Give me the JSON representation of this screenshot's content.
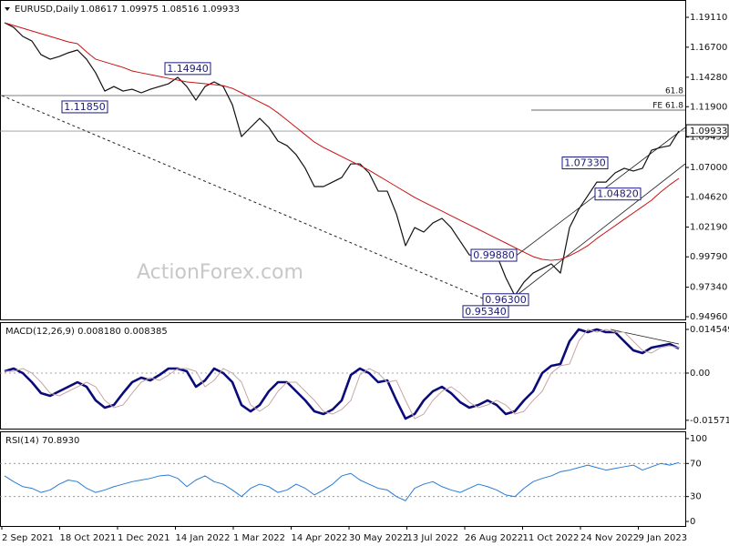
{
  "x_axis_labels": [
    "2 Sep 2021",
    "18 Oct 2021",
    "1 Dec 2021",
    "14 Jan 2022",
    "1 Mar 2022",
    "14 Apr 2022",
    "30 May 2022",
    "13 Jul 2022",
    "26 Aug 2022",
    "11 Oct 2022",
    "24 Nov 2022",
    "9 Jan 2023"
  ],
  "watermark": "ActionForex.com",
  "chart_data": [
    {
      "type": "line",
      "title": "EURUSD,Daily",
      "subtitle": "1.08617 1.09975 1.08516 1.09933",
      "ylim": [
        0.9467,
        1.2036
      ],
      "yticks": [
        {
          "value": 1.1911,
          "label": "1.19110"
        },
        {
          "value": 1.167,
          "label": "1.16700"
        },
        {
          "value": 1.1428,
          "label": "1.14280"
        },
        {
          "value": 1.119,
          "label": "1.11900"
        },
        {
          "value": 1.0945,
          "label": "1.09450"
        },
        {
          "value": 1.07,
          "label": "1.07000"
        },
        {
          "value": 1.0462,
          "label": "1.04620"
        },
        {
          "value": 1.0219,
          "label": "1.02190"
        },
        {
          "value": 0.9979,
          "label": "0.99790"
        },
        {
          "value": 0.9734,
          "label": "0.97340"
        },
        {
          "value": 0.9496,
          "label": "0.94960"
        }
      ],
      "grid": false,
      "series": [
        {
          "color": "#111111",
          "values": [
            1.1867,
            1.183,
            1.1757,
            1.172,
            1.161,
            1.1573,
            1.1595,
            1.1625,
            1.1647,
            1.1573,
            1.1463,
            1.1316,
            1.1353,
            1.1316,
            1.1331,
            1.1302,
            1.1331,
            1.1353,
            1.1375,
            1.1427,
            1.1353,
            1.1243,
            1.1353,
            1.139,
            1.1353,
            1.1206,
            1.0949,
            1.1023,
            1.1096,
            1.1023,
            1.0913,
            1.0876,
            1.0803,
            1.0693,
            1.0546,
            1.0546,
            1.0582,
            1.0619,
            1.0729,
            1.0729,
            1.0656,
            1.0509,
            1.0509,
            1.0326,
            1.0069,
            1.0215,
            1.0179,
            1.0252,
            1.0289,
            1.0215,
            1.0105,
            0.9995,
            0.9981,
            1.0032,
            0.9995,
            0.9812,
            0.9665,
            0.9775,
            0.9848,
            0.9885,
            0.9922,
            0.9848,
            1.0215,
            1.0362,
            1.0472,
            1.0582,
            1.0582,
            1.0656,
            1.0693,
            1.0671,
            1.0693,
            1.0839,
            1.0861,
            1.0876,
            1.0993
          ]
        },
        {
          "color": "#cc1111",
          "values": [
            1.1867,
            1.1845,
            1.1823,
            1.1801,
            1.1779,
            1.1757,
            1.1735,
            1.1713,
            1.1698,
            1.1632,
            1.1573,
            1.1551,
            1.1529,
            1.1507,
            1.1478,
            1.1463,
            1.1449,
            1.1434,
            1.1419,
            1.1405,
            1.139,
            1.1383,
            1.1375,
            1.1368,
            1.136,
            1.1338,
            1.1302,
            1.1265,
            1.1228,
            1.1192,
            1.114,
            1.1082,
            1.1023,
            1.0964,
            1.0905,
            1.0861,
            1.0825,
            1.0788,
            1.0751,
            1.0715,
            1.0678,
            1.0634,
            1.059,
            1.0546,
            1.0502,
            1.0458,
            1.0421,
            1.0384,
            1.0348,
            1.0311,
            1.0274,
            1.0237,
            1.0201,
            1.0164,
            1.0127,
            1.0091,
            1.0054,
            1.0017,
            0.9981,
            0.9959,
            0.9951,
            0.9959,
            0.9988,
            1.0025,
            1.0069,
            1.0127,
            1.0179,
            1.023,
            1.0282,
            1.0333,
            1.0384,
            1.0436,
            1.0502,
            1.056,
            1.0612
          ]
        }
      ],
      "annotations": [
        {
          "value": 1.1494,
          "label": "1.14940"
        },
        {
          "value": 1.1185,
          "label": "1.11850"
        },
        {
          "value": 1.0733,
          "label": "1.07330"
        },
        {
          "value": 1.0482,
          "label": "1.04820"
        },
        {
          "value": 0.9988,
          "label": "0.99880"
        },
        {
          "value": 0.963,
          "label": "0.96300"
        },
        {
          "value": 0.9534,
          "label": "0.95340"
        }
      ],
      "level_labels": [
        "61.8",
        "FE 61.8"
      ],
      "last_price": {
        "value": 1.09933,
        "label": "1.09933"
      }
    },
    {
      "type": "line",
      "title": "MACD(12,26,9) 0.008180 0.008385",
      "ylim": [
        -0.01879,
        0.01667
      ],
      "yticks": [
        0.014549,
        {
          "value": 0,
          "label": "0.00"
        },
        -0.015712
      ],
      "grid": true,
      "series": [
        {
          "color": "#0a0a7a",
          "values": [
            0.00061,
            0.00152,
            0,
            -0.00303,
            -0.00667,
            -0.00758,
            -0.00606,
            -0.00455,
            -0.00303,
            -0.00455,
            -0.00909,
            -0.01152,
            -0.01061,
            -0.00667,
            -0.00303,
            -0.00152,
            -0.00243,
            -0.00061,
            0.00152,
            0.00152,
            0.00061,
            -0.00455,
            -0.00243,
            0.00152,
            0,
            -0.00303,
            -0.01061,
            -0.01273,
            -0.01061,
            -0.00606,
            -0.00303,
            -0.00303,
            -0.00606,
            -0.00909,
            -0.01273,
            -0.01364,
            -0.01212,
            -0.00909,
            -0.00061,
            0.00152,
            0,
            -0.00303,
            -0.00243,
            -0.00909,
            -0.01516,
            -0.01364,
            -0.00909,
            -0.00606,
            -0.00455,
            -0.00667,
            -0.0097,
            -0.01152,
            -0.01061,
            -0.00909,
            -0.01061,
            -0.01364,
            -0.01273,
            -0.00909,
            -0.00606,
            0,
            0.00243,
            0.00303,
            0.01061,
            0.01455,
            0.01364,
            0.01455,
            0.01364,
            0.01364,
            0.01061,
            0.00758,
            0.00667,
            0.00849,
            0.00909,
            0.0097,
            0.00818
          ]
        },
        {
          "color": "#c9a5a5",
          "values": [
            0.00061,
            0.00061,
            0.00152,
            0,
            -0.00303,
            -0.00667,
            -0.00758,
            -0.00606,
            -0.00455,
            -0.00303,
            -0.00455,
            -0.00909,
            -0.01152,
            -0.01061,
            -0.00667,
            -0.00303,
            -0.00152,
            -0.00243,
            -0.00061,
            0.00152,
            0.00152,
            0.00061,
            -0.00455,
            -0.00243,
            0.00152,
            0,
            -0.00303,
            -0.01061,
            -0.01273,
            -0.01061,
            -0.00606,
            -0.00303,
            -0.00303,
            -0.00606,
            -0.00909,
            -0.01273,
            -0.01364,
            -0.01212,
            -0.00909,
            -0.00061,
            0.00152,
            0,
            -0.00303,
            -0.00243,
            -0.00909,
            -0.01516,
            -0.01364,
            -0.00909,
            -0.00606,
            -0.00455,
            -0.00667,
            -0.0097,
            -0.01152,
            -0.01061,
            -0.00909,
            -0.01061,
            -0.01364,
            -0.01273,
            -0.00909,
            -0.00606,
            0,
            0.00243,
            0.00303,
            0.01061,
            0.01455,
            0.01364,
            0.01455,
            0.01364,
            0.01364,
            0.01061,
            0.00758,
            0.00667,
            0.00849,
            0.00909,
            0.008385
          ]
        }
      ]
    },
    {
      "type": "line",
      "title": "RSI(14) 70.8930",
      "ylim": [
        -5.5,
        107.7
      ],
      "yticks": [
        100,
        70,
        30,
        0
      ],
      "grid": true,
      "series": [
        {
          "color": "#2a7bd4",
          "values": [
            55,
            48,
            42,
            40,
            35,
            38,
            45,
            50,
            48,
            40,
            35,
            38,
            42,
            45,
            48,
            50,
            52,
            55,
            56,
            52,
            42,
            50,
            55,
            48,
            45,
            38,
            30,
            40,
            45,
            42,
            35,
            38,
            45,
            40,
            32,
            38,
            45,
            55,
            58,
            50,
            45,
            40,
            38,
            30,
            25,
            40,
            45,
            48,
            42,
            38,
            35,
            40,
            45,
            42,
            38,
            32,
            30,
            40,
            48,
            52,
            55,
            60,
            62,
            65,
            68,
            65,
            62,
            64,
            66,
            68,
            62,
            66,
            70,
            68,
            71
          ]
        }
      ]
    }
  ]
}
